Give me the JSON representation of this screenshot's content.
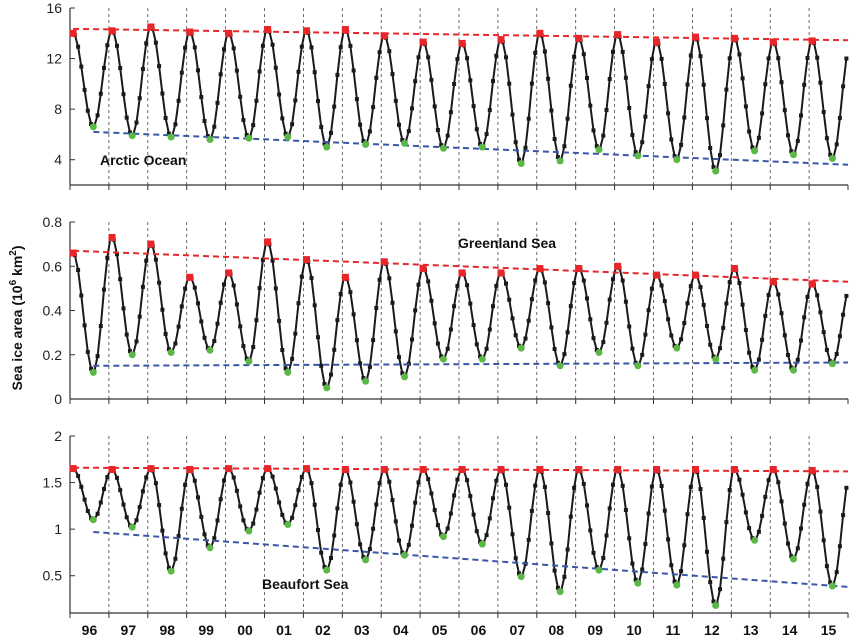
{
  "ylabel_main": "Sea ice area (10",
  "ylabel_sup": "6",
  "ylabel_tail": " km",
  "ylabel_sup2": "2",
  "ylabel_close": ")",
  "colors": {
    "line": "#1a1a1a",
    "max_marker": "#e8262a",
    "min_marker": "#5cb846",
    "max_trend": "#e8262a",
    "min_trend": "#3a56a8",
    "grid": "#444444"
  },
  "chart_data": [
    {
      "type": "line",
      "annotation": "Arctic Ocean",
      "ylim": [
        2,
        16
      ],
      "yticks": [
        4,
        8,
        12,
        16
      ],
      "x_start_year": 1996,
      "x_end_year": 2016,
      "xtick_labels": [
        "96",
        "97",
        "98",
        "99",
        "00",
        "01",
        "02",
        "03",
        "04",
        "05",
        "06",
        "07",
        "08",
        "09",
        "10",
        "11",
        "12",
        "13",
        "14",
        "15"
      ],
      "yearly_max": [
        14.0,
        14.2,
        14.5,
        14.1,
        14.0,
        14.3,
        14.2,
        14.3,
        13.8,
        13.3,
        13.2,
        13.5,
        14.0,
        13.6,
        13.9,
        13.3,
        13.7,
        13.6,
        13.3,
        13.4
      ],
      "yearly_min": [
        6.6,
        5.9,
        5.8,
        5.6,
        5.7,
        5.8,
        5.0,
        5.2,
        5.3,
        4.9,
        5.0,
        3.7,
        3.9,
        4.8,
        4.3,
        4.0,
        3.1,
        4.7,
        4.4,
        4.1
      ],
      "trend_max": [
        14.35,
        13.45
      ],
      "trend_min": [
        6.2,
        3.6
      ]
    },
    {
      "type": "line",
      "annotation": "Greenland Sea",
      "ylim": [
        0,
        0.8
      ],
      "yticks": [
        0,
        0.2,
        0.4,
        0.6,
        0.8
      ],
      "x_start_year": 1996,
      "x_end_year": 2016,
      "xtick_labels": [
        "96",
        "97",
        "98",
        "99",
        "00",
        "01",
        "02",
        "03",
        "04",
        "05",
        "06",
        "07",
        "08",
        "09",
        "10",
        "11",
        "12",
        "13",
        "14",
        "15"
      ],
      "yearly_max": [
        0.66,
        0.73,
        0.7,
        0.55,
        0.57,
        0.71,
        0.63,
        0.55,
        0.62,
        0.59,
        0.57,
        0.57,
        0.59,
        0.59,
        0.6,
        0.56,
        0.56,
        0.59,
        0.53,
        0.52
      ],
      "yearly_min": [
        0.12,
        0.2,
        0.21,
        0.22,
        0.17,
        0.12,
        0.05,
        0.08,
        0.1,
        0.18,
        0.18,
        0.23,
        0.15,
        0.21,
        0.15,
        0.23,
        0.18,
        0.13,
        0.13,
        0.16
      ],
      "trend_max": [
        0.67,
        0.53
      ],
      "trend_min": [
        0.15,
        0.165
      ]
    },
    {
      "type": "line",
      "annotation": "Beaufort Sea",
      "ylim": [
        0.1,
        2
      ],
      "yticks": [
        0.5,
        1,
        1.5,
        2
      ],
      "x_start_year": 1996,
      "x_end_year": 2016,
      "xtick_labels": [
        "96",
        "97",
        "98",
        "99",
        "00",
        "01",
        "02",
        "03",
        "04",
        "05",
        "06",
        "07",
        "08",
        "09",
        "10",
        "11",
        "12",
        "13",
        "14",
        "15"
      ],
      "yearly_max": [
        1.65,
        1.64,
        1.65,
        1.64,
        1.65,
        1.65,
        1.65,
        1.64,
        1.64,
        1.64,
        1.64,
        1.64,
        1.64,
        1.64,
        1.64,
        1.64,
        1.64,
        1.64,
        1.64,
        1.63
      ],
      "yearly_min": [
        1.1,
        1.02,
        0.55,
        0.8,
        0.98,
        1.05,
        0.56,
        0.67,
        0.72,
        0.92,
        0.84,
        0.49,
        0.33,
        0.56,
        0.42,
        0.4,
        0.18,
        0.88,
        0.68,
        0.39
      ],
      "trend_max": [
        1.66,
        1.62
      ],
      "trend_min": [
        0.97,
        0.38
      ]
    }
  ]
}
